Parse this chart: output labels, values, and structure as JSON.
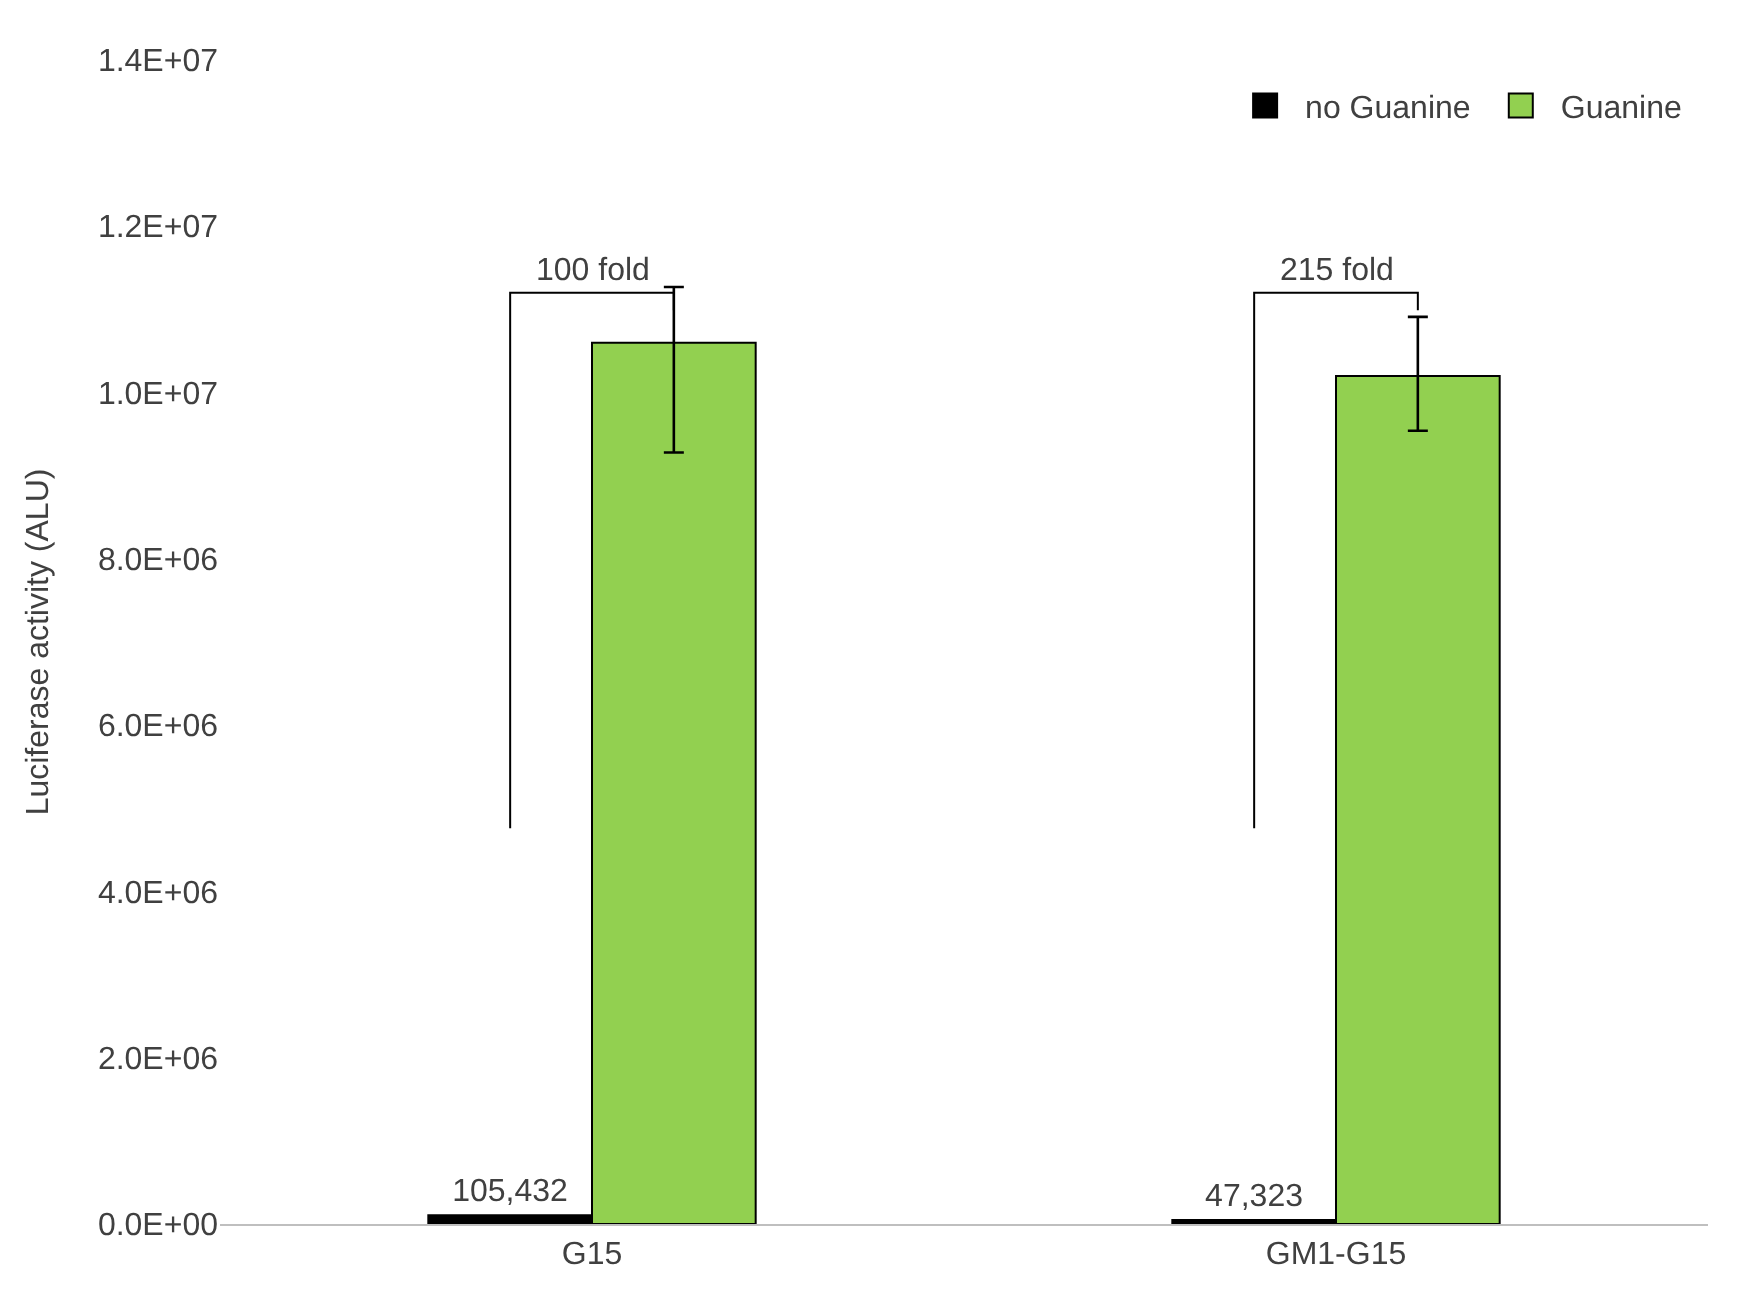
{
  "chart_data": {
    "type": "bar",
    "ylabel": "Luciferase activity (ALU)",
    "categories": [
      "G15",
      "GM1-G15"
    ],
    "series": [
      {
        "name": "no Guanine",
        "color": "#000000",
        "values": [
          105432,
          47323
        ],
        "value_labels": [
          "105,432",
          "47,323"
        ]
      },
      {
        "name": "Guanine",
        "color": "#92d050",
        "values": [
          10600000,
          10200000
        ],
        "errors": [
          [
            9280000,
            11270000
          ],
          [
            9540000,
            10910000
          ]
        ]
      }
    ],
    "ylim": [
      0,
      14000000
    ],
    "yticks": [
      {
        "value": 0,
        "label": "0.0E+00"
      },
      {
        "value": 2000000,
        "label": "2.0E+06"
      },
      {
        "value": 4000000,
        "label": "4.0E+06"
      },
      {
        "value": 6000000,
        "label": "6.0E+06"
      },
      {
        "value": 8000000,
        "label": "8.0E+06"
      },
      {
        "value": 10000000,
        "label": "1.0E+07"
      },
      {
        "value": 12000000,
        "label": "1.2E+07"
      },
      {
        "value": 14000000,
        "label": "1.4E+07"
      }
    ],
    "annotations": [
      "100 fold",
      "215 fold"
    ],
    "grid": false,
    "legend": "top right"
  }
}
